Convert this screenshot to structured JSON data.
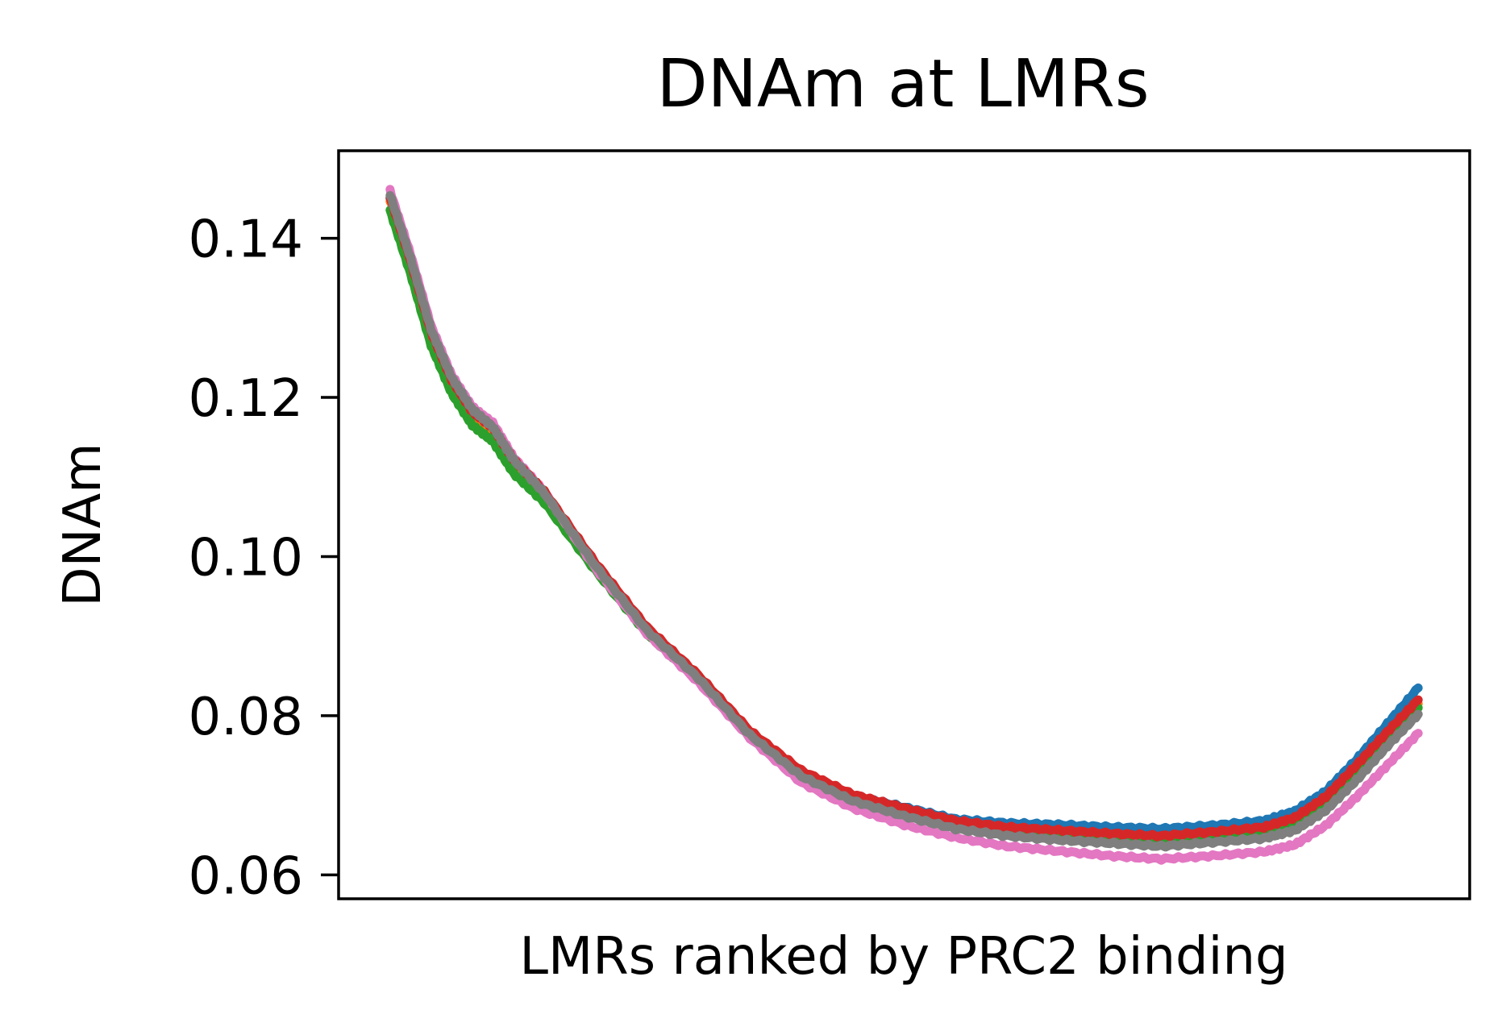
{
  "chart_data": {
    "type": "line",
    "title": "DNAm at LMRs",
    "xlabel": "LMRs ranked by PRC2 binding",
    "ylabel": "DNAm",
    "ylim": [
      0.057,
      0.151
    ],
    "xlim": [
      -0.05,
      1.05
    ],
    "yticks": [
      0.06,
      0.08,
      0.1,
      0.12,
      0.14
    ],
    "ytick_labels": [
      "0.06",
      "0.08",
      "0.10",
      "0.12",
      "0.14"
    ],
    "xticks_visible": false,
    "grid": false,
    "legend": "none",
    "series": [
      {
        "color": "#1f77b4",
        "x": [
          0.0,
          0.02,
          0.04,
          0.06,
          0.08,
          0.1,
          0.12,
          0.15,
          0.2,
          0.25,
          0.3,
          0.35,
          0.4,
          0.45,
          0.5,
          0.55,
          0.6,
          0.65,
          0.7,
          0.75,
          0.8,
          0.85,
          0.88,
          0.91,
          0.94,
          0.97,
          1.0
        ],
        "y": [
          0.145,
          0.137,
          0.128,
          0.122,
          0.118,
          0.116,
          0.112,
          0.108,
          0.099,
          0.091,
          0.085,
          0.078,
          0.073,
          0.07,
          0.0685,
          0.067,
          0.0665,
          0.0663,
          0.066,
          0.0658,
          0.0662,
          0.0668,
          0.068,
          0.0705,
          0.0745,
          0.079,
          0.0835
        ]
      },
      {
        "color": "#ff7f0e",
        "x": [
          0.0,
          0.02,
          0.04,
          0.06,
          0.08,
          0.1,
          0.12,
          0.15,
          0.2,
          0.25,
          0.3,
          0.35,
          0.4,
          0.45,
          0.5,
          0.55,
          0.6,
          0.65,
          0.7,
          0.75,
          0.8,
          0.85,
          0.88,
          0.91,
          0.94,
          0.97,
          1.0
        ],
        "y": [
          0.1448,
          0.1368,
          0.1278,
          0.1218,
          0.1178,
          0.1158,
          0.1118,
          0.1078,
          0.0988,
          0.0908,
          0.0848,
          0.0778,
          0.0728,
          0.0698,
          0.068,
          0.0664,
          0.0656,
          0.0652,
          0.0648,
          0.0645,
          0.065,
          0.0656,
          0.0668,
          0.0694,
          0.0734,
          0.0776,
          0.0815
        ]
      },
      {
        "color": "#2ca02c",
        "x": [
          0.0,
          0.02,
          0.04,
          0.06,
          0.08,
          0.1,
          0.12,
          0.15,
          0.2,
          0.25,
          0.3,
          0.35,
          0.4,
          0.45,
          0.5,
          0.55,
          0.6,
          0.65,
          0.7,
          0.75,
          0.8,
          0.85,
          0.88,
          0.91,
          0.94,
          0.97,
          1.0
        ],
        "y": [
          0.1435,
          0.1355,
          0.1265,
          0.1205,
          0.1165,
          0.1145,
          0.1105,
          0.1068,
          0.0982,
          0.0903,
          0.0845,
          0.0776,
          0.0726,
          0.0696,
          0.0676,
          0.066,
          0.0652,
          0.0648,
          0.0644,
          0.064,
          0.0645,
          0.0651,
          0.0663,
          0.0688,
          0.0728,
          0.077,
          0.081
        ]
      },
      {
        "color": "#e377c2",
        "x": [
          0.0,
          0.02,
          0.04,
          0.06,
          0.08,
          0.1,
          0.12,
          0.15,
          0.2,
          0.25,
          0.3,
          0.35,
          0.4,
          0.45,
          0.5,
          0.55,
          0.6,
          0.65,
          0.7,
          0.75,
          0.8,
          0.85,
          0.88,
          0.91,
          0.94,
          0.97,
          1.0
        ],
        "y": [
          0.146,
          0.138,
          0.129,
          0.1228,
          0.1188,
          0.1168,
          0.1125,
          0.1082,
          0.0985,
          0.0903,
          0.0842,
          0.0772,
          0.0716,
          0.0684,
          0.0663,
          0.0647,
          0.0636,
          0.063,
          0.0624,
          0.062,
          0.0624,
          0.0629,
          0.0638,
          0.0662,
          0.0698,
          0.0738,
          0.0778
        ]
      },
      {
        "color": "#d62728",
        "x": [
          0.0,
          0.02,
          0.04,
          0.06,
          0.08,
          0.1,
          0.12,
          0.15,
          0.2,
          0.25,
          0.3,
          0.35,
          0.4,
          0.45,
          0.5,
          0.55,
          0.6,
          0.65,
          0.7,
          0.75,
          0.8,
          0.85,
          0.88,
          0.91,
          0.94,
          0.97,
          1.0
        ],
        "y": [
          0.1452,
          0.1372,
          0.1282,
          0.1222,
          0.1182,
          0.1162,
          0.1122,
          0.1082,
          0.0992,
          0.0911,
          0.0851,
          0.0781,
          0.0731,
          0.0701,
          0.0684,
          0.0668,
          0.066,
          0.0656,
          0.0652,
          0.0649,
          0.0654,
          0.066,
          0.0672,
          0.0698,
          0.0738,
          0.078,
          0.082
        ]
      },
      {
        "color": "#7f7f7f",
        "x": [
          0.0,
          0.02,
          0.04,
          0.06,
          0.08,
          0.1,
          0.12,
          0.15,
          0.2,
          0.25,
          0.3,
          0.35,
          0.4,
          0.45,
          0.5,
          0.55,
          0.6,
          0.65,
          0.7,
          0.75,
          0.8,
          0.85,
          0.88,
          0.91,
          0.94,
          0.97,
          1.0
        ],
        "y": [
          0.1455,
          0.1375,
          0.1285,
          0.1225,
          0.1185,
          0.1163,
          0.1122,
          0.108,
          0.0988,
          0.0907,
          0.0847,
          0.0776,
          0.0724,
          0.0693,
          0.0674,
          0.0658,
          0.0649,
          0.0644,
          0.064,
          0.0636,
          0.0641,
          0.0646,
          0.0656,
          0.0681,
          0.0719,
          0.0762,
          0.0802
        ]
      }
    ]
  }
}
